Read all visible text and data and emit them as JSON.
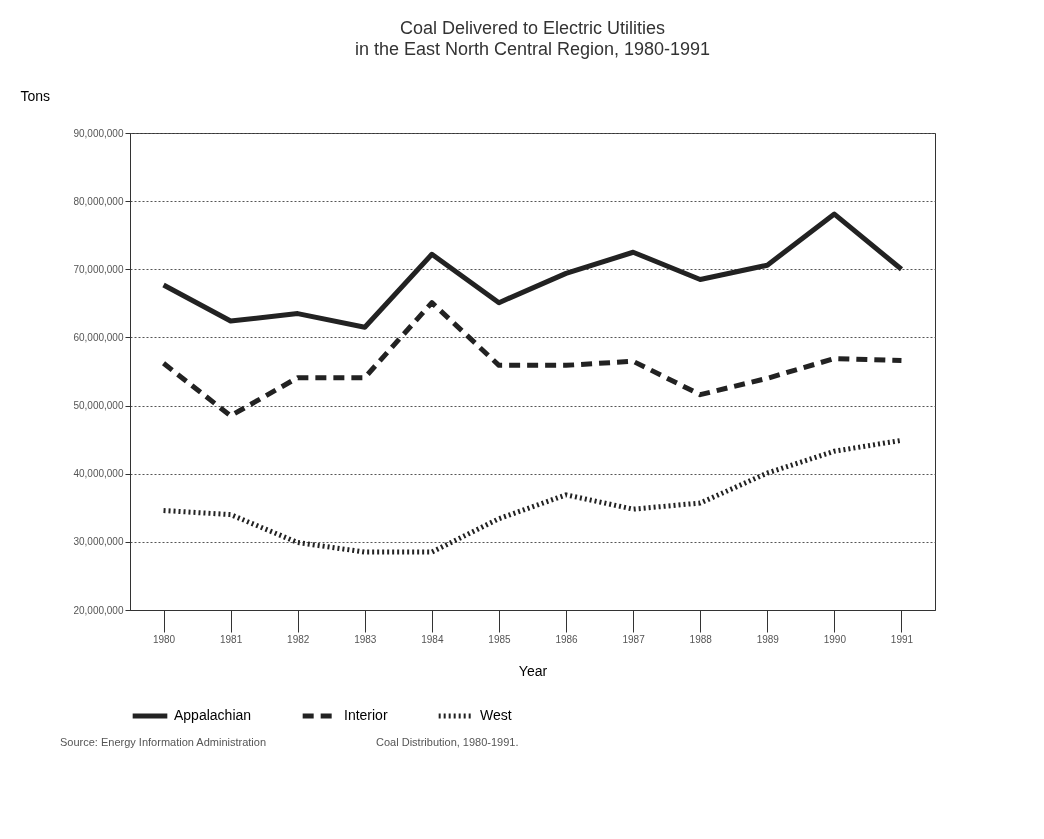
{
  "chart_data": {
    "type": "line",
    "title": "Coal Delivered to Electric Utilities",
    "subtitle": "in the East North Central Region, 1980-1991",
    "xlabel": "Year",
    "ylabel": "Tons",
    "categories": [
      "1980",
      "1981",
      "1982",
      "1983",
      "1984",
      "1985",
      "1986",
      "1987",
      "1988",
      "1989",
      "1990",
      "1991"
    ],
    "series": [
      {
        "name": "Appalachian",
        "color": "#222222",
        "line_style": "solid",
        "values": [
          67700000.0,
          62400000.0,
          63500000.0,
          61500000.0,
          72200000.0,
          65100000.0,
          69400000.0,
          72500000.0,
          68500000.0,
          70600000.0,
          78100000.0,
          70000000.0
        ]
      },
      {
        "name": "Interior",
        "color": "#222222",
        "line_style": "dashed",
        "values": [
          56200000.0,
          48500000.0,
          54100000.0,
          54100000.0,
          65100000.0,
          55900000.0,
          55900000.0,
          56500000.0,
          51600000.0,
          54000000.0,
          56900000.0,
          56600000.0
        ]
      },
      {
        "name": "West",
        "color": "#222222",
        "line_style": "dotted",
        "values": [
          34600000.0,
          34000000.0,
          29900000.0,
          28500000.0,
          28500000.0,
          33400000.0,
          36900000.0,
          34800000.0,
          35700000.0,
          40100000.0,
          43300000.0,
          44900000.0
        ]
      }
    ],
    "ylim": [
      20000000,
      90000000
    ],
    "yticks": [
      {
        "value": 20000000,
        "label": "20,000,000"
      },
      {
        "value": 30000000,
        "label": "30,000,000"
      },
      {
        "value": 40000000,
        "label": "40,000,000"
      },
      {
        "value": 50000000,
        "label": "50,000,000"
      },
      {
        "value": 60000000,
        "label": "60,000,000"
      },
      {
        "value": 70000000,
        "label": "70,000,000"
      },
      {
        "value": 80000000,
        "label": "80,000,000"
      },
      {
        "value": 90000000,
        "label": "90,000,000"
      }
    ],
    "grid": "y",
    "legend": "bottom",
    "marker": "none",
    "annotations": [
      "Source: Energy Information Administration",
      "Coal Distribution, 1980-1991."
    ]
  }
}
